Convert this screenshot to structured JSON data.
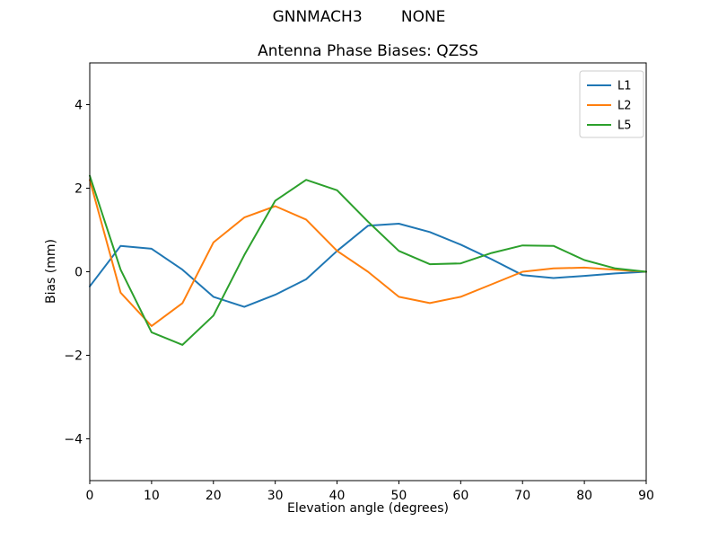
{
  "suptitle": "GNNMACH3        NONE",
  "chart_data": {
    "type": "line",
    "suptitle": "GNNMACH3        NONE",
    "title": "Antenna Phase Biases: QZSS",
    "xlabel": "Elevation angle (degrees)",
    "ylabel": "Bias (mm)",
    "xlim": [
      0,
      90
    ],
    "ylim": [
      -5,
      5
    ],
    "xticks": [
      0,
      10,
      20,
      30,
      40,
      50,
      60,
      70,
      80,
      90
    ],
    "yticks": [
      -4,
      -2,
      0,
      2,
      4
    ],
    "grid": false,
    "legend_position": "upper right",
    "x": [
      0,
      5,
      10,
      15,
      20,
      25,
      30,
      35,
      40,
      45,
      50,
      55,
      60,
      65,
      70,
      75,
      80,
      85,
      90
    ],
    "series": [
      {
        "name": "L1",
        "color": "#1f77b4",
        "values": [
          -0.35,
          0.62,
          0.55,
          0.05,
          -0.6,
          -0.84,
          -0.55,
          -0.18,
          0.5,
          1.1,
          1.15,
          0.95,
          0.65,
          0.3,
          -0.08,
          -0.15,
          -0.1,
          -0.04,
          0.0
        ]
      },
      {
        "name": "L2",
        "color": "#ff7f0e",
        "values": [
          2.2,
          -0.5,
          -1.3,
          -0.75,
          0.7,
          1.3,
          1.57,
          1.25,
          0.5,
          0.0,
          -0.6,
          -0.75,
          -0.6,
          -0.3,
          0.0,
          0.08,
          0.1,
          0.05,
          0.0
        ]
      },
      {
        "name": "L5",
        "color": "#2ca02c",
        "values": [
          2.3,
          0.05,
          -1.45,
          -1.75,
          -1.05,
          0.4,
          1.7,
          2.2,
          1.95,
          1.2,
          0.5,
          0.18,
          0.2,
          0.45,
          0.63,
          0.62,
          0.28,
          0.08,
          0.0
        ]
      }
    ]
  }
}
